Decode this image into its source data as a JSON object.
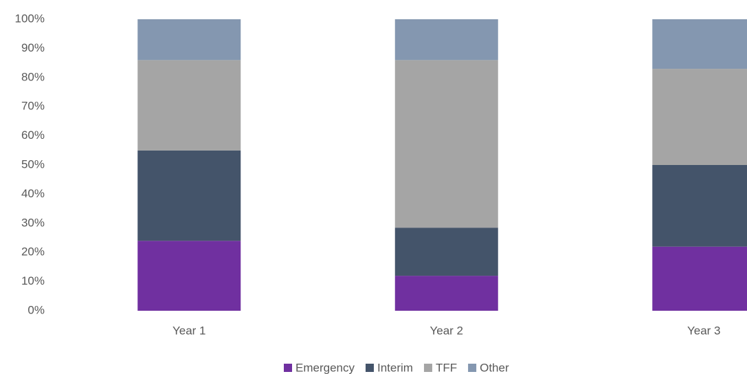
{
  "chart_data": {
    "type": "stacked_bar",
    "categories": [
      "Year 1",
      "Year 2",
      "Year 3"
    ],
    "series": [
      {
        "name": "Emergency",
        "color": "#7030a0",
        "values": [
          24,
          12,
          22
        ]
      },
      {
        "name": "Interim",
        "color": "#44546a",
        "values": [
          31,
          16.5,
          28
        ]
      },
      {
        "name": "TFF",
        "color": "#a5a5a5",
        "values": [
          31,
          57.5,
          33
        ]
      },
      {
        "name": "Other",
        "color": "#8497b0",
        "values": [
          14,
          14,
          17
        ]
      }
    ],
    "ylim": [
      0,
      100
    ],
    "yticks": [
      {
        "value": 0,
        "label": "0%"
      },
      {
        "value": 10,
        "label": "10%"
      },
      {
        "value": 20,
        "label": "20%"
      },
      {
        "value": 30,
        "label": "30%"
      },
      {
        "value": 40,
        "label": "40%"
      },
      {
        "value": 50,
        "label": "50%"
      },
      {
        "value": 60,
        "label": "60%"
      },
      {
        "value": 70,
        "label": "70%"
      },
      {
        "value": 80,
        "label": "80%"
      },
      {
        "value": 90,
        "label": "90%"
      },
      {
        "value": 100,
        "label": "100%"
      }
    ],
    "grid": false,
    "legend": "bottom"
  }
}
